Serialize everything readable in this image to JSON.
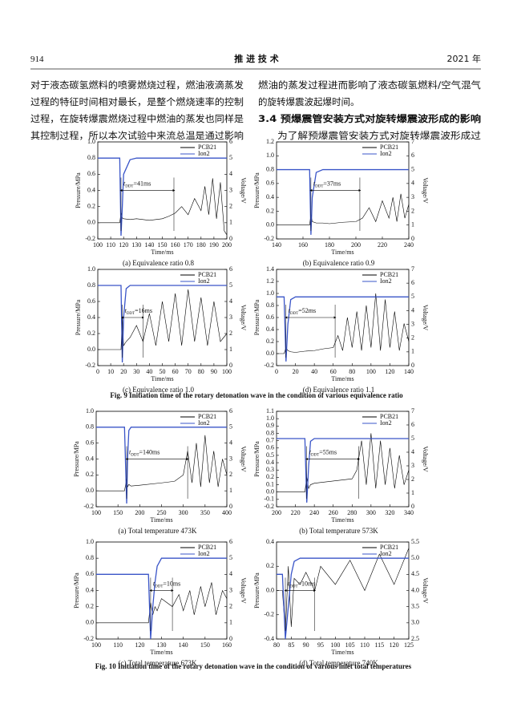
{
  "header": {
    "page": "914",
    "journal": "推 进 技 术",
    "year": "2021 年"
  },
  "left_lines": [
    "对于液态碳氢燃料的喷雾燃烧过程，燃油液滴蒸发",
    "过程的特征时间相对最长，是整个燃烧速率的控制",
    "过程，在旋转爆震燃烧过程中燃油的蒸发也同样是",
    "其控制过程，所以本次试验中来流总温是通过影响"
  ],
  "right_lines": [
    "燃油的蒸发过程进而影响了液态碳氢燃料/空气混气",
    "的旋转爆震波起爆时间。",
    "3.4  预爆震管安装方式对旋转爆震波形成的影响",
    "为了解预爆震管安装方式对旋转爆震波形成过"
  ],
  "figure_captions": [
    "Fig. 9    Initiation time of the rotary detonation wave in the condition of various equivalence ratio",
    "Fig. 10    Initiation time of the rotary detonation wave in the condition of various inlet total temperatures"
  ],
  "chart_data": [
    {
      "type": "line",
      "caption": "(a) Equivalence ratio 0.8",
      "x_label": "Time/ms",
      "y_label": "Pressure/MPa",
      "y2_label": "Voltage/V",
      "annotation": [
        "t",
        "DDT",
        "=41ms"
      ],
      "ddt_interval": [
        118,
        159
      ],
      "x": [
        100,
        110,
        117,
        118,
        119,
        120,
        125,
        130,
        140,
        150,
        155,
        160,
        165,
        170,
        175,
        180,
        183,
        186,
        189,
        192,
        195,
        198,
        200
      ],
      "series": [
        {
          "name": "PCB21",
          "color": "#000000",
          "values": [
            0.0,
            0.0,
            0.0,
            0.12,
            0.06,
            0.05,
            0.04,
            0.05,
            0.03,
            0.05,
            0.08,
            0.12,
            0.2,
            0.1,
            0.3,
            0.15,
            0.45,
            0.1,
            0.55,
            0.05,
            0.5,
            -0.1,
            -0.15
          ]
        },
        {
          "name": "Ion2",
          "color": "#3a55c8",
          "axis": "y2",
          "values": [
            5,
            5,
            5,
            0.2,
            2,
            4,
            4.9,
            5,
            5,
            5,
            5,
            5,
            5,
            5,
            5,
            5,
            5,
            5,
            5,
            5,
            5,
            5,
            5
          ]
        }
      ],
      "xlim": [
        100,
        200
      ],
      "xticks": [
        100,
        110,
        120,
        130,
        140,
        150,
        160,
        170,
        180,
        190,
        200
      ],
      "ylim": [
        -0.2,
        1.0
      ],
      "yticks": [
        -0.2,
        {
          "value": 0,
          "label": "0.0"
        },
        0.2,
        0.4,
        0.6,
        0.8,
        {
          "value": 1,
          "label": "1.0"
        }
      ],
      "y2lim": [
        0,
        6
      ],
      "y2ticks": [
        0,
        1,
        2,
        3,
        4,
        5,
        6
      ]
    },
    {
      "type": "line",
      "caption": "(b) Equivalence ratio 0.9",
      "x_label": "Time/ms",
      "y_label": "Pressure/MPa",
      "y2_label": "Voltage/V",
      "annotation": [
        "t",
        "DDT",
        "=37ms"
      ],
      "ddt_interval": [
        166,
        203
      ],
      "x": [
        140,
        150,
        160,
        165,
        166,
        167,
        170,
        175,
        180,
        190,
        200,
        205,
        210,
        215,
        220,
        225,
        228,
        231,
        234,
        237,
        240
      ],
      "series": [
        {
          "name": "PCB21",
          "color": "#000000",
          "values": [
            0.0,
            0.0,
            0.0,
            0.0,
            0.15,
            0.05,
            0.03,
            0.03,
            0.02,
            0.04,
            0.05,
            0.1,
            0.25,
            0.05,
            0.35,
            0.1,
            0.4,
            0.05,
            0.45,
            0.1,
            0.3
          ]
        },
        {
          "name": "Ion2",
          "color": "#3a55c8",
          "axis": "y2",
          "values": [
            5,
            5,
            5,
            5,
            0.3,
            3,
            4.8,
            5,
            5,
            5,
            5,
            5,
            5,
            5,
            5,
            5,
            5,
            5,
            5,
            5,
            5
          ]
        }
      ],
      "xlim": [
        140,
        240
      ],
      "xticks": [
        140,
        160,
        180,
        200,
        220,
        240
      ],
      "ylim": [
        -0.2,
        1.2
      ],
      "yticks": [
        -0.2,
        {
          "value": 0,
          "label": "0.0"
        },
        0.2,
        0.4,
        0.6,
        0.8,
        {
          "value": 1,
          "label": "1.0"
        },
        1.2
      ],
      "y2lim": [
        0,
        7
      ],
      "y2ticks": [
        0,
        1,
        2,
        3,
        4,
        5,
        6,
        7
      ]
    },
    {
      "type": "line",
      "caption": "(c) Equivalence ratio 1.0",
      "x_label": "Time/ms",
      "y_label": "Pressure/MPa",
      "y2_label": "Voltage/V",
      "annotation": [
        "t",
        "DDT",
        "=16ms"
      ],
      "ddt_interval": [
        19,
        35
      ],
      "x": [
        0,
        10,
        18,
        19,
        20,
        22,
        25,
        30,
        35,
        40,
        45,
        50,
        55,
        60,
        65,
        70,
        75,
        80,
        85,
        90,
        95,
        100
      ],
      "series": [
        {
          "name": "PCB21",
          "color": "#000000",
          "values": [
            0.0,
            0.0,
            0.0,
            0.4,
            0.05,
            0.1,
            0.15,
            0.3,
            0.1,
            0.45,
            0.05,
            0.6,
            0.1,
            0.7,
            0.05,
            0.75,
            0.1,
            0.65,
            0.05,
            0.6,
            0.1,
            0.2
          ]
        },
        {
          "name": "Ion2",
          "color": "#3a55c8",
          "axis": "y2",
          "values": [
            5,
            5,
            5,
            0.2,
            3,
            4.8,
            5,
            5,
            5,
            5,
            5,
            5,
            5,
            5,
            5,
            5,
            5,
            5,
            5,
            5,
            5,
            5
          ]
        }
      ],
      "xlim": [
        0,
        100
      ],
      "xticks": [
        0,
        10,
        20,
        30,
        40,
        50,
        60,
        70,
        80,
        90,
        100
      ],
      "ylim": [
        -0.2,
        1.0
      ],
      "yticks": [
        -0.2,
        {
          "value": 0,
          "label": "0.0"
        },
        0.2,
        0.4,
        0.6,
        0.8,
        {
          "value": 1,
          "label": "1.0"
        }
      ],
      "y2lim": [
        0,
        6
      ],
      "y2ticks": [
        0,
        1,
        2,
        3,
        4,
        5,
        6
      ]
    },
    {
      "type": "line",
      "caption": "(d) Equivalence ratio 1.1",
      "x_label": "Time/ms",
      "y_label": "Pressure/MPa",
      "y2_label": "Voltage/V",
      "annotation": [
        "t",
        "DDT",
        "=52ms"
      ],
      "ddt_interval": [
        10,
        62
      ],
      "x": [
        0,
        8,
        10,
        12,
        15,
        20,
        30,
        40,
        50,
        60,
        65,
        70,
        75,
        80,
        85,
        90,
        95,
        100,
        105,
        110,
        115,
        120,
        125,
        130,
        135,
        140
      ],
      "series": [
        {
          "name": "PCB21",
          "color": "#000000",
          "values": [
            0,
            0,
            0.1,
            0.05,
            0.03,
            0.02,
            0.04,
            0.05,
            0.08,
            0.1,
            0.3,
            0.05,
            0.6,
            0.1,
            0.7,
            0.05,
            0.8,
            0.1,
            1.0,
            0.05,
            0.9,
            0.1,
            0.7,
            0.05,
            0.5,
            0.2
          ]
        },
        {
          "name": "Ion2",
          "color": "#3a55c8",
          "axis": "y2",
          "values": [
            5,
            5,
            0.3,
            3,
            4.8,
            5,
            5,
            5,
            5,
            5,
            5,
            5,
            5,
            5,
            5,
            5,
            5,
            5,
            5,
            5,
            5,
            5,
            5,
            5,
            5,
            5
          ]
        }
      ],
      "xlim": [
        0,
        140
      ],
      "xticks": [
        0,
        20,
        40,
        60,
        80,
        100,
        120,
        140
      ],
      "ylim": [
        -0.2,
        1.4
      ],
      "yticks": [
        -0.2,
        {
          "value": 0,
          "label": "0.0"
        },
        0.2,
        0.4,
        0.6,
        0.8,
        {
          "value": 1,
          "label": "1.0"
        },
        1.2,
        1.4
      ],
      "y2lim": [
        0,
        7
      ],
      "y2ticks": [
        0,
        1,
        2,
        3,
        4,
        5,
        6,
        7
      ]
    },
    {
      "type": "line",
      "caption": "(a) Total temperature 473K",
      "x_label": "Time/ms",
      "y_label": "Pressure/MPa",
      "y2_label": "Voltage/V",
      "annotation": [
        "t",
        "DDT",
        "=140ms"
      ],
      "ddt_interval": [
        170,
        310
      ],
      "x": [
        100,
        150,
        165,
        170,
        172,
        175,
        180,
        200,
        250,
        280,
        300,
        310,
        320,
        330,
        340,
        350,
        360,
        370,
        380,
        390,
        400
      ],
      "series": [
        {
          "name": "PCB21",
          "color": "#000000",
          "values": [
            0,
            0,
            0,
            0.15,
            0.05,
            0.08,
            0.06,
            0.07,
            0.1,
            0.12,
            0.2,
            0.5,
            0.1,
            0.6,
            0.05,
            0.7,
            0.1,
            0.5,
            0.05,
            0.4,
            0.2
          ]
        },
        {
          "name": "Ion2",
          "color": "#3a55c8",
          "axis": "y2",
          "values": [
            5,
            5,
            5,
            0.2,
            3,
            4.8,
            5,
            5,
            5,
            5,
            5,
            5,
            5,
            5,
            5,
            5,
            5,
            5,
            5,
            5,
            5
          ]
        }
      ],
      "xlim": [
        100,
        400
      ],
      "xticks": [
        100,
        150,
        200,
        250,
        300,
        350,
        400
      ],
      "ylim": [
        -0.2,
        1.0
      ],
      "yticks": [
        -0.2,
        {
          "value": 0,
          "label": "0.0"
        },
        0.2,
        0.4,
        0.6,
        0.8,
        {
          "value": 1,
          "label": "1.0"
        }
      ],
      "y2lim": [
        0,
        6
      ],
      "y2ticks": [
        0,
        1,
        2,
        3,
        4,
        5,
        6
      ]
    },
    {
      "type": "line",
      "caption": "(b) Total temperature 573K",
      "x_label": "Time/ms",
      "y_label": "Pressure/MPa",
      "y2_label": "Voltage/V",
      "annotation": [
        "t",
        "DDT",
        "=55ms"
      ],
      "ddt_interval": [
        232,
        287
      ],
      "x": [
        200,
        220,
        230,
        232,
        234,
        236,
        240,
        260,
        280,
        285,
        290,
        295,
        300,
        305,
        310,
        315,
        320,
        325,
        330,
        335,
        340
      ],
      "series": [
        {
          "name": "PCB21",
          "color": "#000000",
          "values": [
            0,
            0,
            0,
            0.2,
            0.05,
            0.1,
            0.12,
            0.15,
            0.18,
            0.3,
            0.7,
            0.1,
            0.8,
            0.05,
            0.7,
            0.1,
            0.6,
            0.05,
            0.5,
            0.1,
            0.3
          ]
        },
        {
          "name": "Ion2",
          "color": "#3a55c8",
          "axis": "y2",
          "values": [
            5,
            5,
            5,
            0.3,
            3,
            4.8,
            5,
            5,
            5,
            5,
            5,
            5,
            5,
            5,
            5,
            5,
            5,
            5,
            5,
            5,
            5
          ]
        }
      ],
      "xlim": [
        200,
        340
      ],
      "xticks": [
        200,
        220,
        240,
        260,
        280,
        300,
        320,
        340
      ],
      "ylim": [
        -0.2,
        1.1
      ],
      "yticks": [
        -0.2,
        -0.1,
        {
          "value": 0,
          "label": "0.0"
        },
        0.1,
        0.2,
        0.3,
        0.4,
        0.5,
        0.6,
        0.7,
        0.8,
        0.9,
        {
          "value": 1,
          "label": "1.0"
        },
        1.1
      ],
      "y2lim": [
        0,
        7
      ],
      "y2ticks": [
        0,
        1,
        2,
        3,
        4,
        5,
        6,
        7
      ]
    },
    {
      "type": "line",
      "caption": "(c) Total temperature 673K",
      "x_label": "Time/ms",
      "y_label": "Pressure/MPa",
      "y2_label": "Voltage/V",
      "annotation": [
        "t",
        "DDT",
        "=10ms"
      ],
      "ddt_interval": [
        125,
        135
      ],
      "x": [
        100,
        110,
        120,
        124,
        125,
        126,
        127,
        128,
        130,
        135,
        138,
        140,
        143,
        145,
        148,
        150,
        153,
        155,
        158,
        160
      ],
      "series": [
        {
          "name": "PCB21",
          "color": "#000000",
          "values": [
            0,
            0,
            0,
            0,
            0.25,
            0.1,
            0.2,
            0.15,
            0.3,
            0.2,
            0.35,
            0.15,
            0.4,
            0.1,
            0.45,
            0.2,
            0.5,
            0.1,
            0.4,
            0.3
          ]
        },
        {
          "name": "Ion2",
          "color": "#3a55c8",
          "axis": "y2",
          "values": [
            4,
            4,
            4,
            4,
            0,
            2,
            3.5,
            4.5,
            5,
            5,
            5,
            5,
            5,
            5,
            5,
            5,
            5,
            5,
            5,
            5
          ]
        }
      ],
      "xlim": [
        100,
        160
      ],
      "xticks": [
        100,
        110,
        120,
        130,
        140,
        150,
        160
      ],
      "ylim": [
        -0.2,
        1.0
      ],
      "yticks": [
        -0.2,
        {
          "value": 0,
          "label": "0.0"
        },
        0.2,
        0.4,
        0.6,
        0.8,
        {
          "value": 1,
          "label": "1.0"
        }
      ],
      "y2lim": [
        0,
        6
      ],
      "y2ticks": [
        0,
        1,
        2,
        3,
        4,
        5,
        6
      ]
    },
    {
      "type": "line",
      "caption": "(d) Total temperature 740K",
      "x_label": "Time/ms",
      "y_label": "Pressure/MPa",
      "y2_label": "Voltage/V",
      "annotation": [
        "t",
        "DDT",
        "=10ms"
      ],
      "ddt_interval": [
        83,
        93
      ],
      "x": [
        80,
        82,
        83,
        84,
        85,
        86,
        88,
        90,
        93,
        95,
        100,
        105,
        110,
        115,
        120,
        125
      ],
      "series": [
        {
          "name": "PCB21",
          "color": "#000000",
          "values": [
            0,
            0,
            -0.35,
            0.2,
            -0.3,
            0.1,
            0.05,
            0.15,
            0.0,
            0.2,
            0.05,
            0.25,
            0.0,
            0.3,
            0.05,
            0.35
          ]
        },
        {
          "name": "Ion2",
          "color": "#3a55c8",
          "axis": "y2",
          "values": [
            4.5,
            4.5,
            2.5,
            3.5,
            4.5,
            4.9,
            5,
            5,
            5,
            5,
            5,
            5,
            5,
            5,
            5,
            5
          ]
        }
      ],
      "xlim": [
        80,
        125
      ],
      "xticks": [
        80,
        85,
        90,
        95,
        100,
        105,
        110,
        115,
        120,
        125
      ],
      "ylim": [
        -0.4,
        0.4
      ],
      "yticks": [
        -0.4,
        -0.2,
        {
          "value": 0,
          "label": "0.0"
        },
        0.2,
        0.4
      ],
      "y2lim": [
        2.5,
        5.5
      ],
      "y2ticks": [
        2.5,
        {
          "value": 3,
          "label": "3.0"
        },
        3.5,
        {
          "value": 4,
          "label": "4.0"
        },
        4.5,
        {
          "value": 5,
          "label": "5.0"
        },
        5.5
      ]
    }
  ]
}
